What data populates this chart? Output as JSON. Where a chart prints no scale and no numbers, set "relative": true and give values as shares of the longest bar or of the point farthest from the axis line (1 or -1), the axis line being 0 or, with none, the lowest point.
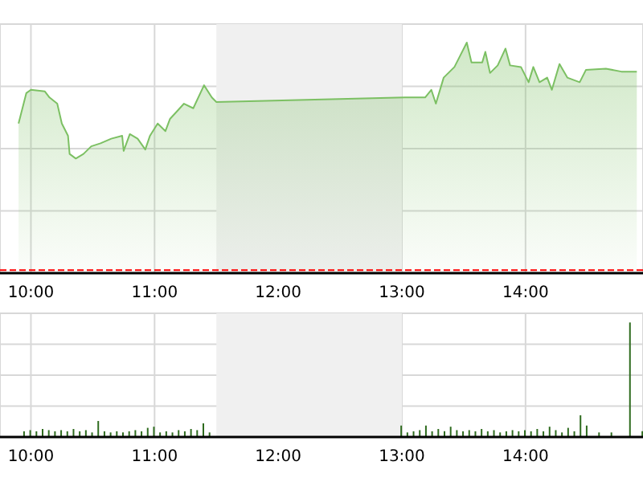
{
  "chart_data": [
    {
      "type": "area",
      "relative": true,
      "color": "#7cc063",
      "grid": true,
      "xlim": [
        9.75,
        14.95
      ],
      "xticks": [
        {
          "value": 10,
          "label": "10:00"
        },
        {
          "value": 11,
          "label": "11:00"
        },
        {
          "value": 12,
          "label": "12:00"
        },
        {
          "value": 13,
          "label": "13:00"
        },
        {
          "value": 14,
          "label": "14:00"
        }
      ],
      "x": [
        9.9,
        9.963,
        10.0,
        10.113,
        10.15,
        10.213,
        10.25,
        10.3,
        10.313,
        10.363,
        10.425,
        10.488,
        10.563,
        10.65,
        10.738,
        10.75,
        10.8,
        10.863,
        10.925,
        10.963,
        11.025,
        11.088,
        11.125,
        11.238,
        11.313,
        11.4,
        11.463,
        11.5,
        13.025,
        13.188,
        13.238,
        13.275,
        13.338,
        13.425,
        13.463,
        13.525,
        13.563,
        13.65,
        13.675,
        13.713,
        13.775,
        13.838,
        13.875,
        13.963,
        14.025,
        14.063,
        14.113,
        14.175,
        14.213,
        14.275,
        14.338,
        14.438,
        14.488,
        14.65,
        14.775,
        14.9
      ],
      "values": [
        0.649,
        0.781,
        0.795,
        0.788,
        0.762,
        0.735,
        0.649,
        0.596,
        0.517,
        0.497,
        0.517,
        0.55,
        0.563,
        0.583,
        0.596,
        0.53,
        0.603,
        0.583,
        0.536,
        0.596,
        0.649,
        0.616,
        0.669,
        0.735,
        0.715,
        0.815,
        0.762,
        0.742,
        0.762,
        0.762,
        0.795,
        0.735,
        0.848,
        0.894,
        0.934,
        1,
        0.914,
        0.914,
        0.96,
        0.868,
        0.901,
        0.974,
        0.901,
        0.894,
        0.828,
        0.894,
        0.828,
        0.848,
        0.795,
        0.907,
        0.848,
        0.828,
        0.881,
        0.887,
        0.874,
        0.874
      ],
      "bands": [
        {
          "axis": "x",
          "from": 11.5,
          "to": 13,
          "color": "#f0f0f0"
        }
      ],
      "ref_lines": [
        {
          "axis": "y",
          "value": 0.013,
          "color": "#ff0000",
          "line_style": "dashed"
        }
      ]
    },
    {
      "type": "bar",
      "relative": true,
      "color": "#2e6b1e",
      "grid": true,
      "xlim": [
        9.75,
        14.95
      ],
      "xticks": [
        {
          "value": 10,
          "label": "10:00"
        },
        {
          "value": 11,
          "label": "11:00"
        },
        {
          "value": 12,
          "label": "12:00"
        },
        {
          "value": 13,
          "label": "13:00"
        },
        {
          "value": 14,
          "label": "14:00"
        }
      ],
      "x": [
        9.95,
        10.0,
        10.05,
        10.1,
        10.15,
        10.2,
        10.25,
        10.3,
        10.35,
        10.4,
        10.45,
        10.5,
        10.55,
        10.6,
        10.65,
        10.7,
        10.75,
        10.8,
        10.85,
        10.9,
        10.95,
        11.0,
        11.05,
        11.1,
        11.15,
        11.2,
        11.25,
        11.3,
        11.35,
        11.4,
        11.45,
        13.0,
        13.05,
        13.1,
        13.15,
        13.2,
        13.25,
        13.3,
        13.35,
        13.4,
        13.45,
        13.5,
        13.55,
        13.6,
        13.65,
        13.7,
        13.75,
        13.8,
        13.85,
        13.9,
        13.95,
        14.0,
        14.05,
        14.1,
        14.15,
        14.2,
        14.25,
        14.3,
        14.35,
        14.4,
        14.45,
        14.5,
        14.6,
        14.7,
        14.85,
        14.95
      ],
      "values": [
        0.05,
        0.06,
        0.05,
        0.07,
        0.06,
        0.05,
        0.06,
        0.05,
        0.07,
        0.05,
        0.06,
        0.04,
        0.14,
        0.05,
        0.04,
        0.05,
        0.04,
        0.05,
        0.06,
        0.05,
        0.08,
        0.09,
        0.04,
        0.05,
        0.04,
        0.06,
        0.05,
        0.07,
        0.06,
        0.12,
        0.04,
        0.1,
        0.04,
        0.05,
        0.06,
        0.1,
        0.05,
        0.07,
        0.05,
        0.09,
        0.06,
        0.05,
        0.06,
        0.05,
        0.07,
        0.05,
        0.06,
        0.04,
        0.05,
        0.06,
        0.05,
        0.06,
        0.05,
        0.07,
        0.05,
        0.09,
        0.06,
        0.04,
        0.08,
        0.05,
        0.19,
        0.1,
        0.04,
        0.04,
        1,
        0.05
      ],
      "bands": [
        {
          "axis": "x",
          "from": 11.5,
          "to": 13,
          "color": "#f0f0f0"
        }
      ]
    }
  ]
}
